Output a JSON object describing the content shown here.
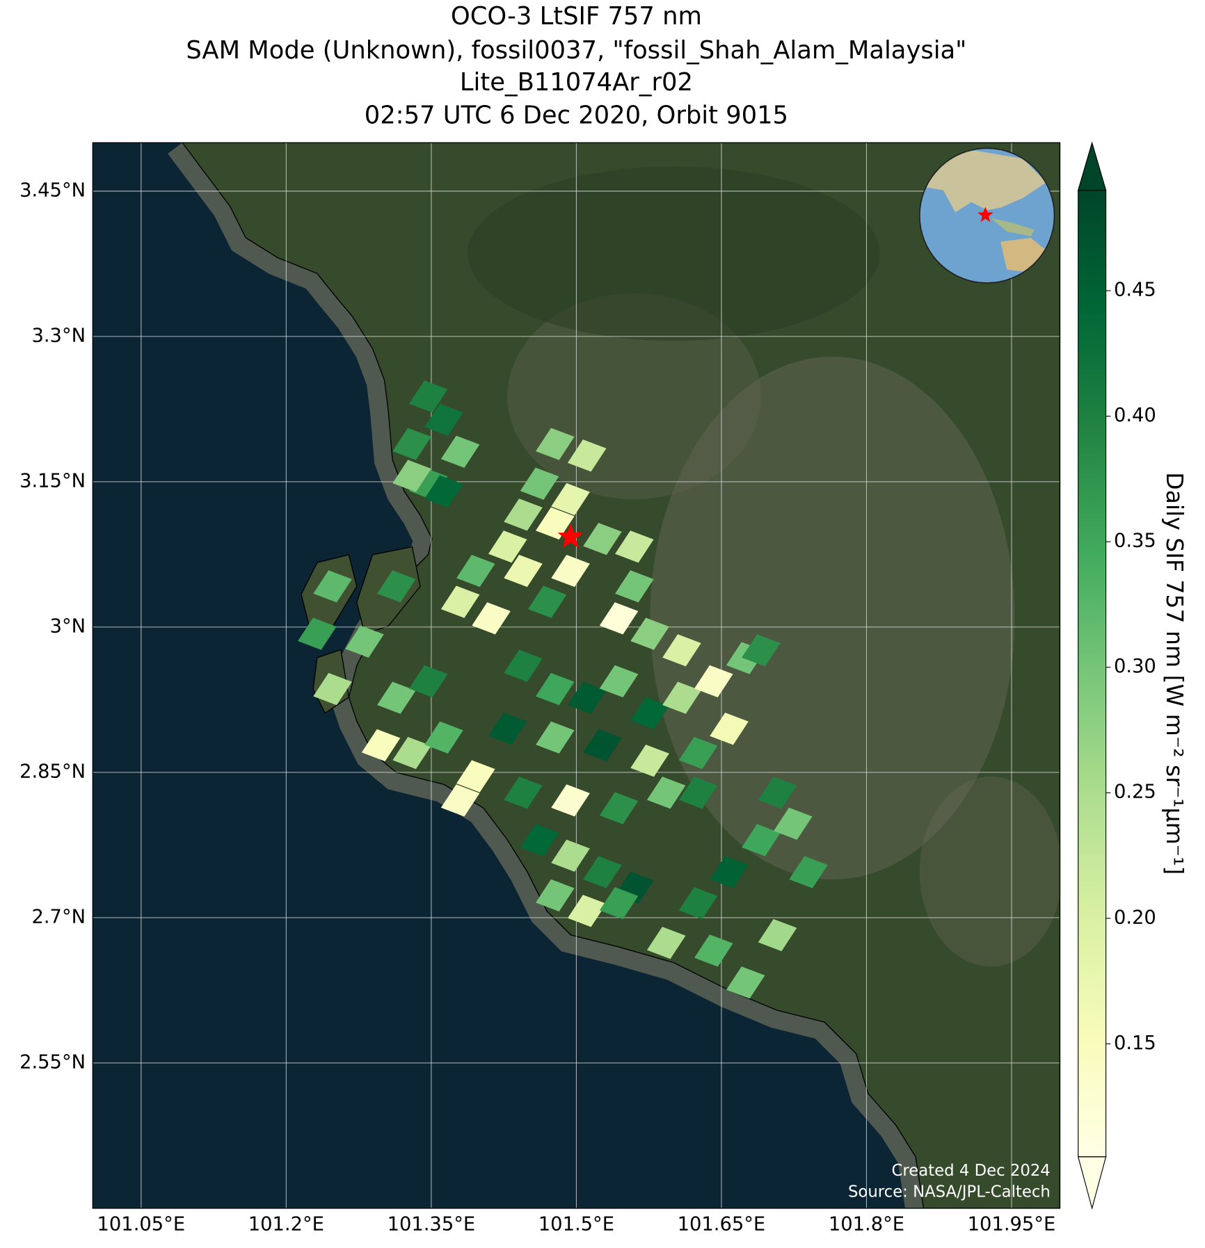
{
  "chart_data": {
    "type": "map",
    "title": [
      "OCO-3 LtSIF 757 nm",
      "SAM Mode (Unknown), fossil0037, \"fossil_Shah_Alam_Malaysia\"",
      "Lite_B11074Ar_r02",
      "02:57 UTC 6 Dec 2020, Orbit 9015"
    ],
    "xlim": [
      101.0,
      102.0
    ],
    "ylim": [
      2.4,
      3.5
    ],
    "xticks": [
      {
        "value": 101.05,
        "label": "101.05°E"
      },
      {
        "value": 101.2,
        "label": "101.2°E"
      },
      {
        "value": 101.35,
        "label": "101.35°E"
      },
      {
        "value": 101.5,
        "label": "101.5°E"
      },
      {
        "value": 101.65,
        "label": "101.65°E"
      },
      {
        "value": 101.8,
        "label": "101.8°E"
      },
      {
        "value": 101.95,
        "label": "101.95°E"
      }
    ],
    "yticks": [
      {
        "value": 2.55,
        "label": "2.55°N"
      },
      {
        "value": 2.7,
        "label": "2.7°N"
      },
      {
        "value": 2.85,
        "label": "2.85°N"
      },
      {
        "value": 3,
        "label": "3°N"
      },
      {
        "value": 3.15,
        "label": "3.15°N"
      },
      {
        "value": 3.3,
        "label": "3.3°N"
      },
      {
        "value": 3.45,
        "label": "3.45°N"
      }
    ],
    "grid": true,
    "colorbar": {
      "label": "Daily SIF 757 nm [W m⁻² sr⁻¹μm⁻¹]",
      "clim": [
        0.105,
        0.49
      ],
      "ticks": [
        0.15,
        {
          "value": 0.2,
          "label": "0.20"
        },
        0.25,
        {
          "value": 0.3,
          "label": "0.30"
        },
        0.35,
        {
          "value": 0.4,
          "label": "0.40"
        },
        0.45
      ],
      "colormap": [
        "#ffffe5",
        "#f7fcb9",
        "#d9f0a3",
        "#addd8e",
        "#78c679",
        "#41ab5d",
        "#238443",
        "#006837",
        "#004529"
      ]
    },
    "target": {
      "lon": 101.494,
      "lat": 3.093,
      "color": "#ff0000"
    },
    "footprints": {
      "lon": [
        101.347,
        101.363,
        101.33,
        101.38,
        101.347,
        101.363,
        101.33,
        101.478,
        101.511,
        101.462,
        101.494,
        101.445,
        101.478,
        101.429,
        101.527,
        101.396,
        101.445,
        101.494,
        101.38,
        101.412,
        101.47,
        101.56,
        101.56,
        101.544,
        101.576,
        101.609,
        101.445,
        101.478,
        101.511,
        101.544,
        101.576,
        101.609,
        101.642,
        101.675,
        101.691,
        101.429,
        101.478,
        101.527,
        101.576,
        101.626,
        101.658,
        101.396,
        101.445,
        101.494,
        101.544,
        101.593,
        101.626,
        101.462,
        101.494,
        101.527,
        101.56,
        101.478,
        101.511,
        101.544,
        101.593,
        101.626,
        101.658,
        101.691,
        101.724,
        101.708,
        101.74,
        101.642,
        101.675,
        101.708,
        101.314,
        101.347,
        101.33,
        101.298,
        101.363,
        101.38,
        101.248,
        101.232,
        101.314,
        101.281,
        101.248
      ],
      "lat": [
        3.238,
        3.214,
        3.189,
        3.181,
        3.148,
        3.14,
        3.156,
        3.189,
        3.177,
        3.148,
        3.132,
        3.116,
        3.107,
        3.083,
        3.091,
        3.058,
        3.058,
        3.058,
        3.026,
        3.009,
        3.026,
        3.083,
        3.042,
        3.009,
        2.993,
        2.976,
        2.96,
        2.936,
        2.927,
        2.944,
        2.911,
        2.927,
        2.944,
        2.968,
        2.976,
        2.895,
        2.886,
        2.878,
        2.862,
        2.87,
        2.895,
        2.846,
        2.829,
        2.821,
        2.813,
        2.829,
        2.829,
        2.78,
        2.764,
        2.747,
        2.731,
        2.723,
        2.707,
        2.715,
        2.674,
        2.715,
        2.747,
        2.78,
        2.797,
        2.829,
        2.747,
        2.666,
        2.633,
        2.682,
        2.927,
        2.944,
        2.87,
        2.878,
        2.886,
        2.821,
        3.042,
        2.993,
        3.042,
        2.985,
        2.936
      ],
      "values": [
        0.4,
        0.42,
        0.38,
        0.3,
        0.36,
        0.44,
        0.28,
        0.28,
        0.22,
        0.3,
        0.18,
        0.25,
        0.15,
        0.2,
        0.28,
        0.32,
        0.17,
        0.14,
        0.2,
        0.14,
        0.38,
        0.22,
        0.3,
        0.12,
        0.28,
        0.2,
        0.4,
        0.35,
        0.46,
        0.3,
        0.44,
        0.25,
        0.14,
        0.3,
        0.38,
        0.46,
        0.3,
        0.47,
        0.22,
        0.36,
        0.16,
        0.15,
        0.4,
        0.13,
        0.38,
        0.3,
        0.4,
        0.44,
        0.25,
        0.4,
        0.47,
        0.3,
        0.2,
        0.36,
        0.25,
        0.4,
        0.45,
        0.35,
        0.3,
        0.4,
        0.36,
        0.33,
        0.3,
        0.26,
        0.3,
        0.4,
        0.25,
        0.15,
        0.33,
        0.14,
        0.32,
        0.36,
        0.38,
        0.3,
        0.25
      ]
    },
    "annotations": [
      "Created 4 Dec 2024",
      "Source: NASA/JPL-Caltech"
    ]
  }
}
